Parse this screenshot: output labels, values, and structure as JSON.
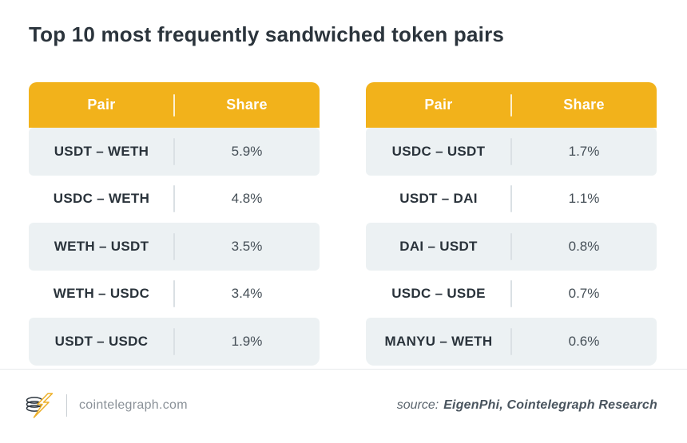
{
  "page": {
    "title": "Top 10 most frequently sandwiched token pairs"
  },
  "chart_data": {
    "type": "table",
    "title": "Top 10 most frequently sandwiched token pairs",
    "columns": [
      "Pair",
      "Share"
    ],
    "tables": [
      {
        "rows": [
          {
            "pair": "USDT – WETH",
            "share": "5.9%"
          },
          {
            "pair": "USDC – WETH",
            "share": "4.8%"
          },
          {
            "pair": "WETH – USDT",
            "share": "3.5%"
          },
          {
            "pair": "WETH – USDC",
            "share": "3.4%"
          },
          {
            "pair": "USDT – USDC",
            "share": "1.9%"
          }
        ]
      },
      {
        "rows": [
          {
            "pair": "USDC – USDT",
            "share": "1.7%"
          },
          {
            "pair": "USDT – DAI",
            "share": "1.1%"
          },
          {
            "pair": "DAI – USDT",
            "share": "0.8%"
          },
          {
            "pair": "USDC – USDE",
            "share": "0.7%"
          },
          {
            "pair": "MANYU – WETH",
            "share": "0.6%"
          }
        ]
      }
    ],
    "layout": {
      "legend": false,
      "grid": false,
      "header_background": "#F2B21B",
      "alt_row_background": "#ECF1F3"
    }
  },
  "colors": {
    "accent": "#F2B21B",
    "row_alt": "#ECF1F3",
    "title_text": "#2B343C",
    "pair_text": "#2A333B",
    "share_text": "#454F57",
    "footer_text": "#8A9198",
    "source_text": "#49545E"
  },
  "footer": {
    "site": "cointelegraph.com",
    "logo_icon": "cointelegraph-coin-lightning-logo",
    "source_label": "source:",
    "source_value": "EigenPhi, Cointelegraph Research"
  }
}
